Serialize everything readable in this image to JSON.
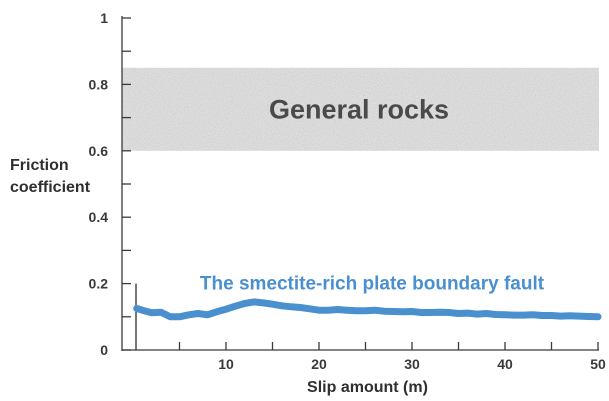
{
  "chart_data": {
    "type": "line",
    "xlabel": "Slip amount (m)",
    "ylabel": [
      "Friction",
      "coefficient"
    ],
    "xlim": [
      0,
      50
    ],
    "ylim": [
      0,
      1
    ],
    "x_ticks": [
      {
        "value": 10,
        "label": "10"
      },
      {
        "value": 20,
        "label": "20"
      },
      {
        "value": 30,
        "label": "30"
      },
      {
        "value": 40,
        "label": "40"
      },
      {
        "value": 50,
        "label": "50"
      }
    ],
    "y_ticks": [
      {
        "value": 0,
        "label": "0"
      },
      {
        "value": 0.2,
        "label": "0.2"
      },
      {
        "value": 0.4,
        "label": "0.4"
      },
      {
        "value": 0.6,
        "label": "0.6"
      },
      {
        "value": 0.8,
        "label": "0.8"
      },
      {
        "value": 1,
        "label": "1"
      }
    ],
    "y_minor_ticks": [
      0.1,
      0.3,
      0.5,
      0.7,
      0.9
    ],
    "bands": [
      {
        "label": "General rocks",
        "y_from": 0.6,
        "y_to": 0.85,
        "color": "#dedede"
      }
    ],
    "series": [
      {
        "name": "The smectite-rich plate boundary fault",
        "color": "#4a90cf",
        "x": [
          0.4,
          1,
          2,
          3,
          4,
          5,
          6,
          7,
          8,
          9,
          10,
          11,
          12,
          13,
          14,
          15,
          16,
          17,
          18,
          19,
          20,
          21,
          22,
          23,
          24,
          25,
          26,
          27,
          28,
          29,
          30,
          31,
          32,
          33,
          34,
          35,
          36,
          37,
          38,
          39,
          40,
          41,
          42,
          43,
          44,
          45,
          46,
          47,
          48,
          49,
          50
        ],
        "y": [
          0.125,
          0.12,
          0.112,
          0.114,
          0.1,
          0.1,
          0.106,
          0.11,
          0.106,
          0.115,
          0.123,
          0.132,
          0.14,
          0.145,
          0.142,
          0.138,
          0.133,
          0.13,
          0.128,
          0.124,
          0.12,
          0.12,
          0.122,
          0.12,
          0.118,
          0.118,
          0.12,
          0.117,
          0.116,
          0.115,
          0.116,
          0.113,
          0.113,
          0.114,
          0.113,
          0.11,
          0.111,
          0.108,
          0.11,
          0.107,
          0.106,
          0.105,
          0.105,
          0.106,
          0.104,
          0.104,
          0.102,
          0.103,
          0.102,
          0.101,
          0.1
        ]
      }
    ]
  }
}
